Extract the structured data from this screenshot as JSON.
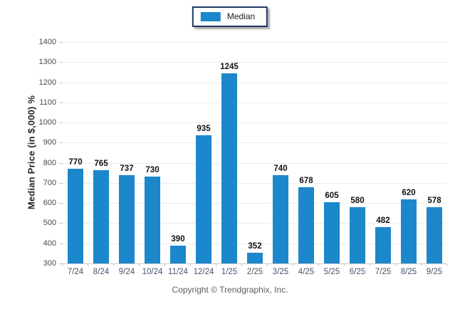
{
  "legend": {
    "label": "Median",
    "swatch_color": "#1C87CB"
  },
  "footer": {
    "copyright": "Copyright © Trendgraphix, Inc."
  },
  "colors": {
    "bar": "#1C87CB",
    "grid": "#ebebeb",
    "axis_line": "#c9c9c9",
    "x_label_text": "#44546A",
    "y_label_text": "#4a4a4a",
    "legend_border": "#1F3864"
  },
  "chart_data": {
    "type": "bar",
    "title": "",
    "categories": [
      "7/24",
      "8/24",
      "9/24",
      "10/24",
      "11/24",
      "12/24",
      "1/25",
      "2/25",
      "3/25",
      "4/25",
      "5/25",
      "6/25",
      "7/25",
      "8/25",
      "9/25"
    ],
    "series": [
      {
        "name": "Median",
        "values": [
          770,
          765,
          737,
          730,
          390,
          935,
          1245,
          352,
          740,
          678,
          605,
          580,
          482,
          620,
          578
        ]
      }
    ],
    "value_labels": [
      770,
      765,
      737,
      730,
      390,
      935,
      1245,
      352,
      740,
      678,
      605,
      580,
      482,
      620,
      578
    ],
    "xlabel": "",
    "ylabel": "Median Price (in $,000) %",
    "ylim": [
      300,
      1400
    ],
    "yticks": [
      300,
      400,
      500,
      600,
      700,
      800,
      900,
      1000,
      1100,
      1200,
      1300,
      1400
    ],
    "grid": true,
    "legend_position": "top-center",
    "bar_color": "#1C87CB"
  }
}
